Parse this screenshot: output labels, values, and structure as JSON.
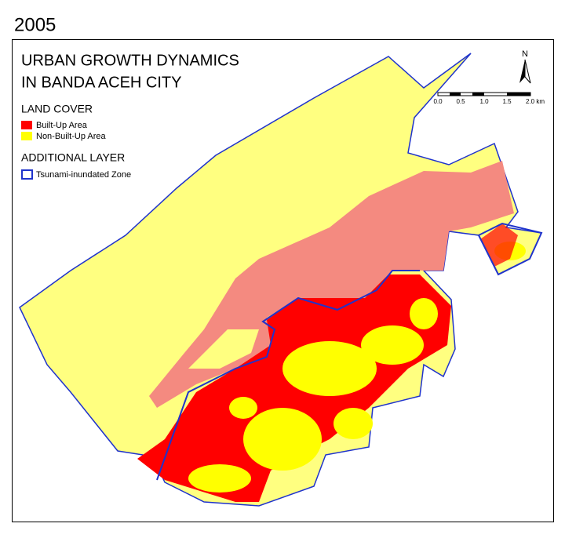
{
  "year": "2005",
  "title": {
    "line1": "URBAN GROWTH DYNAMICS",
    "line2": "IN BANDA ACEH CITY"
  },
  "legend": {
    "land_cover_heading": "LAND COVER",
    "land_cover_items": [
      "Built-Up Area",
      "Non-Built-Up Area"
    ],
    "additional_heading": "ADDITIONAL LAYER",
    "additional_items": [
      "Tsunami-inundated Zone"
    ]
  },
  "north_arrow": "N",
  "scale_bar": [
    "0.0",
    "0.5",
    "1.0",
    "1.5",
    "2.0 km"
  ]
}
